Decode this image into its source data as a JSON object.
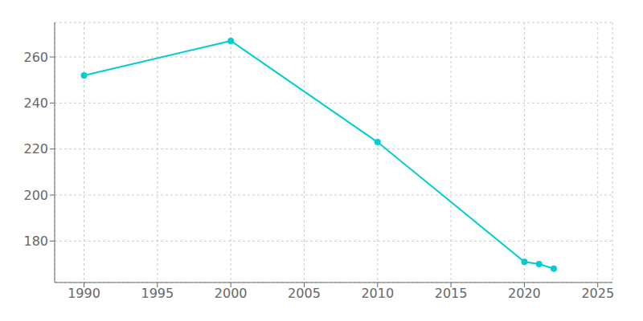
{
  "chart_data": {
    "type": "line",
    "x": [
      1990,
      2000,
      2010,
      2020,
      2021,
      2022
    ],
    "values": [
      252,
      267,
      223,
      171,
      170,
      168
    ],
    "color": "#00CED1",
    "marker": "circle",
    "xlim": [
      1988,
      2026
    ],
    "ylim": [
      162,
      275
    ],
    "xticks": [
      1990,
      1995,
      2000,
      2005,
      2010,
      2015,
      2020,
      2025
    ],
    "yticks": [
      180,
      200,
      220,
      240,
      260
    ],
    "grid": true
  }
}
